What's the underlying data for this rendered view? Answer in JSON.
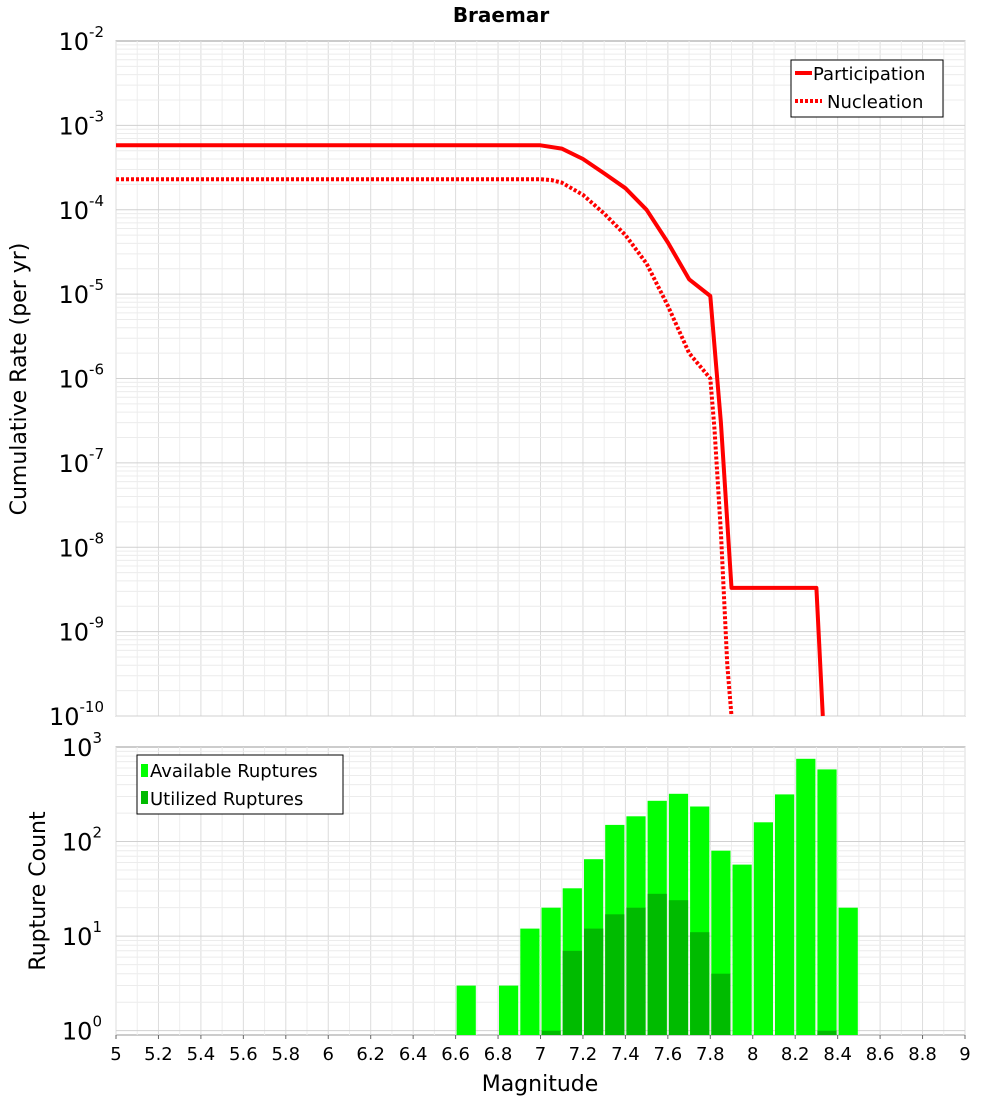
{
  "chart_data": [
    {
      "type": "line",
      "title": "Braemar",
      "ylabel": "Cumulative Rate (per yr)",
      "xlabel": "",
      "y_scale": "log",
      "ylim": [
        1e-10,
        0.01
      ],
      "xlim": [
        5,
        9
      ],
      "y_ticks": [
        {
          "base": "10",
          "exp": "-2"
        },
        {
          "base": "10",
          "exp": "-3"
        },
        {
          "base": "10",
          "exp": "-4"
        },
        {
          "base": "10",
          "exp": "-5"
        },
        {
          "base": "10",
          "exp": "-6"
        },
        {
          "base": "10",
          "exp": "-7"
        },
        {
          "base": "10",
          "exp": "-8"
        },
        {
          "base": "10",
          "exp": "-9"
        },
        {
          "base": "10",
          "exp": "-10"
        }
      ],
      "grid": true,
      "legend_position": "top-right",
      "series": [
        {
          "name": "Participation",
          "style": "solid",
          "color": "#ff0000",
          "x": [
            5.0,
            7.0,
            7.1,
            7.2,
            7.3,
            7.4,
            7.5,
            7.6,
            7.7,
            7.8,
            7.85,
            7.9,
            8.0,
            8.1,
            8.2,
            8.3,
            8.33
          ],
          "y": [
            0.00058,
            0.00058,
            0.00053,
            0.0004,
            0.00027,
            0.00018,
            0.0001,
            4.1e-05,
            1.5e-05,
            9.5e-06,
            3e-07,
            3.3e-09,
            3.3e-09,
            3.3e-09,
            3.3e-09,
            3.3e-09,
            1e-10
          ]
        },
        {
          "name": "Nucleation",
          "style": "dotted",
          "color": "#ff0000",
          "x": [
            5.0,
            7.0,
            7.05,
            7.1,
            7.2,
            7.3,
            7.4,
            7.5,
            7.6,
            7.7,
            7.8,
            7.82,
            7.85,
            7.88,
            7.9
          ],
          "y": [
            0.00023,
            0.00023,
            0.000225,
            0.00021,
            0.00015,
            9e-05,
            5e-05,
            2.3e-05,
            7.3e-06,
            2e-06,
            1e-06,
            2.5e-07,
            1.5e-08,
            4e-10,
            1e-10
          ]
        }
      ]
    },
    {
      "type": "bar",
      "ylabel": "Rupture Count",
      "xlabel": "Magnitude",
      "y_scale": "log",
      "ylim": [
        0.9,
        1000
      ],
      "xlim": [
        5,
        9
      ],
      "x_ticks": [
        "5",
        "5.2",
        "5.4",
        "5.6",
        "5.8",
        "6",
        "6.2",
        "6.4",
        "6.6",
        "6.8",
        "7",
        "7.2",
        "7.4",
        "7.6",
        "7.8",
        "8",
        "8.2",
        "8.4",
        "8.6",
        "8.8",
        "9"
      ],
      "y_ticks": [
        {
          "base": "10",
          "exp": "3"
        },
        {
          "base": "10",
          "exp": "2"
        },
        {
          "base": "10",
          "exp": "1"
        },
        {
          "base": "10",
          "exp": "0"
        }
      ],
      "grid": true,
      "legend_position": "top-left",
      "bin_width": 0.1,
      "categories": [
        6.65,
        6.85,
        6.95,
        7.05,
        7.15,
        7.25,
        7.35,
        7.45,
        7.55,
        7.65,
        7.75,
        7.85,
        7.95,
        8.05,
        8.15,
        8.25,
        8.35,
        8.45
      ],
      "series": [
        {
          "name": "Available Ruptures",
          "color": "#00ff00",
          "values": [
            3,
            3,
            12,
            20,
            32,
            65,
            150,
            185,
            270,
            320,
            235,
            80,
            57,
            160,
            315,
            750,
            580,
            20
          ]
        },
        {
          "name": "Utilized Ruptures",
          "color": "#00bb00",
          "values": [
            0,
            0,
            0,
            1,
            7,
            12,
            17,
            20,
            28,
            24,
            11,
            4,
            0,
            0,
            0,
            0,
            1,
            0
          ]
        }
      ]
    }
  ]
}
